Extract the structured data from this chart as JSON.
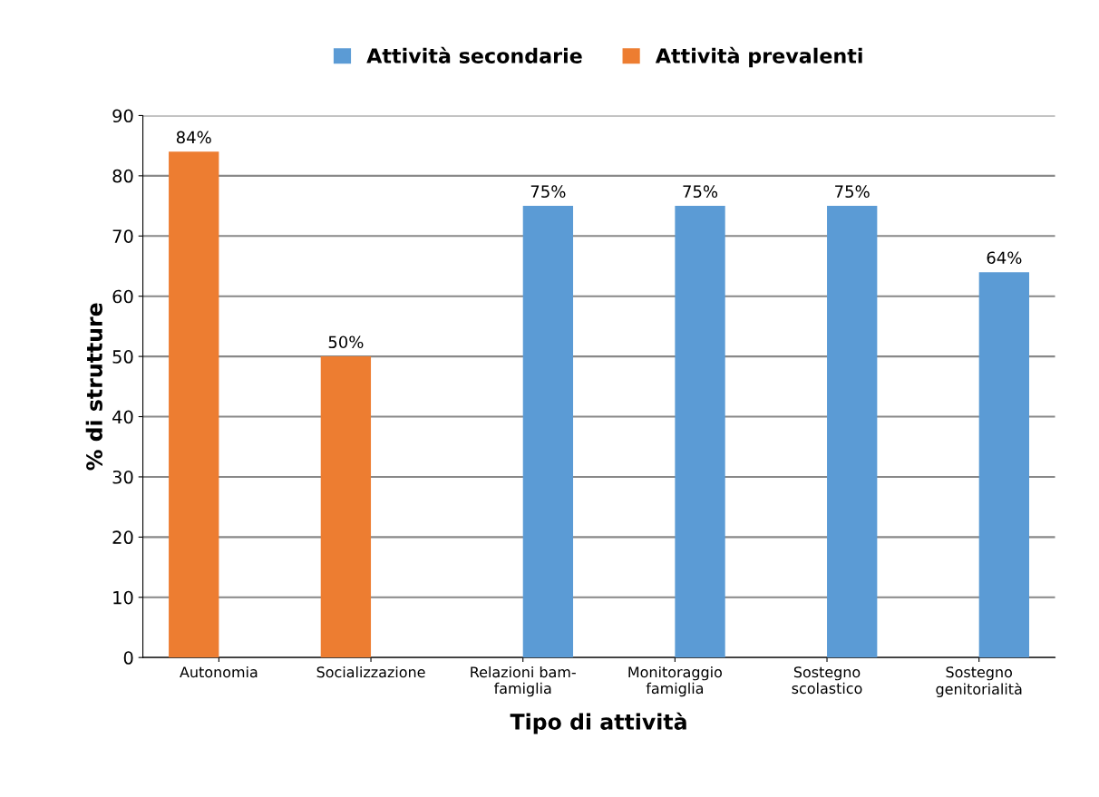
{
  "chart_data": {
    "type": "bar",
    "xlabel": "Tipo di attività",
    "ylabel": "% di strutture",
    "categories": [
      "Autonomia",
      "Socializzazione",
      "Relazioni bam-\nfamiglia",
      "Monitoraggio\nfamiglia",
      "Sostegno\nscolastico",
      "Sostegno\ngenitorialità"
    ],
    "series": [
      {
        "name": "Attività secondarie",
        "color": "#5b9bd5",
        "values": [
          null,
          null,
          75,
          75,
          75,
          64
        ],
        "value_labels": [
          null,
          null,
          "75%",
          "75%",
          "75%",
          "64%"
        ]
      },
      {
        "name": "Attività prevalenti",
        "color": "#ed7d31",
        "values": [
          84,
          50,
          null,
          null,
          null,
          null
        ],
        "value_labels": [
          "84%",
          "50%",
          null,
          null,
          null,
          null
        ]
      }
    ],
    "ylim": [
      0,
      90
    ],
    "yticks": [
      0,
      10,
      20,
      30,
      40,
      50,
      60,
      70,
      80,
      90
    ],
    "grid": "y",
    "legend": "top"
  }
}
